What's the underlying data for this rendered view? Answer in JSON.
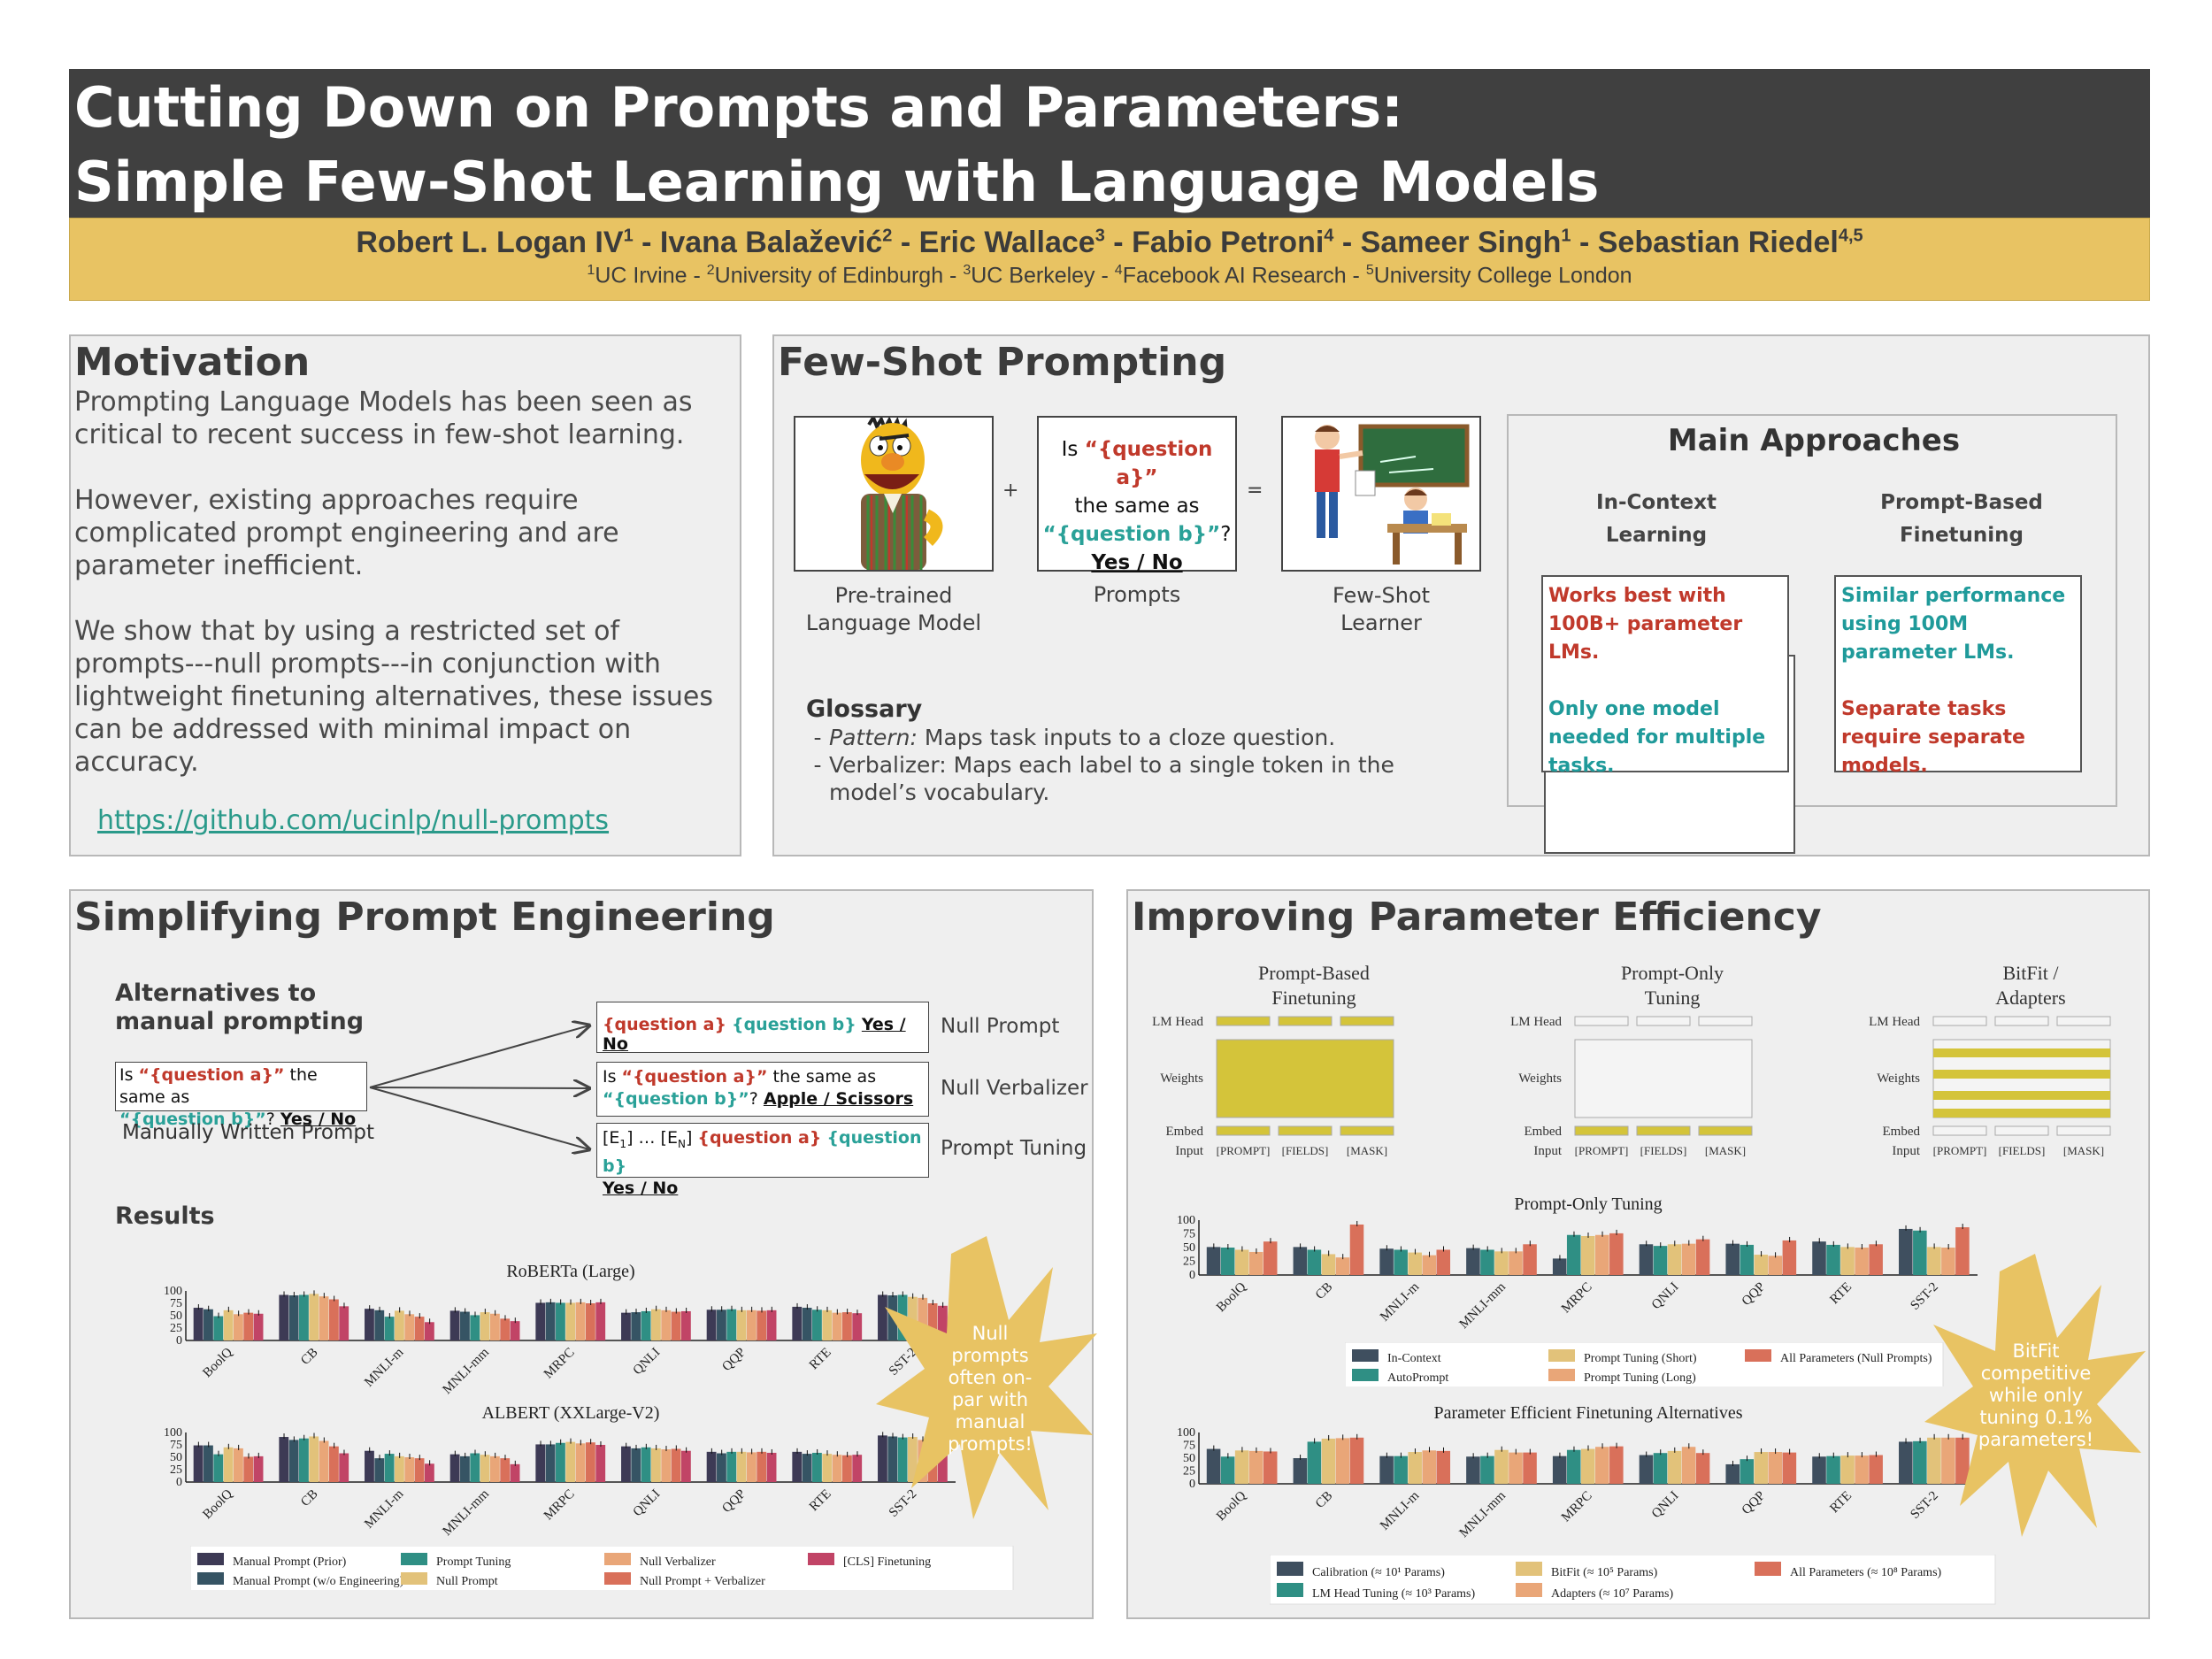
{
  "header": {
    "title_line1": "Cutting Down on Prompts and Parameters:",
    "title_line2": "Simple Few-Shot Learning with Language Models",
    "authors": [
      {
        "name": "Robert L. Logan IV",
        "sup": "1"
      },
      {
        "name": "Ivana Balažević",
        "sup": "2"
      },
      {
        "name": "Eric Wallace",
        "sup": "3"
      },
      {
        "name": "Fabio Petroni",
        "sup": "4"
      },
      {
        "name": "Sameer Singh",
        "sup": "1"
      },
      {
        "name": "Sebastian Riedel",
        "sup": "4,5"
      }
    ],
    "affiliations": [
      {
        "sup": "1",
        "name": "UC Irvine"
      },
      {
        "sup": "2",
        "name": "University of Edinburgh"
      },
      {
        "sup": "3",
        "name": "UC Berkeley"
      },
      {
        "sup": "4",
        "name": "Facebook AI Research"
      },
      {
        "sup": "5",
        "name": "University College London"
      }
    ],
    "separator": " - "
  },
  "motivation": {
    "heading": "Motivation",
    "para1": "Prompting Language Models has been seen as critical to recent success in few-shot learning.",
    "para2": "However, existing approaches require complicated prompt engineering and are parameter inefficient.",
    "para3": "We show that by using a restricted set of prompts---null prompts---in conjunction with lightweight finetuning alternatives, these issues can be addressed with minimal impact on accuracy.",
    "link": "https://github.com/ucinlp/null-prompts"
  },
  "few_shot": {
    "heading": "Few-Shot Prompting",
    "plus": "+",
    "equals": "=",
    "prompt_is": "Is ",
    "prompt_qa": "“{question a}”",
    "prompt_same": "the same as",
    "prompt_qb": "“{question b}”",
    "prompt_q": "?",
    "prompt_yesno": "Yes / No",
    "cap_lm": "Pre-trained Language Model",
    "cap_prompts": "Prompts",
    "cap_learner": "Few-Shot Learner",
    "glossary_title": "Glossary",
    "gloss_dash": "-",
    "gloss_pattern_term": "Pattern:",
    "gloss_pattern_def": " Maps task inputs to a cloze question.",
    "gloss_verbalizer": "Verbalizer: Maps each label to a single token in the model’s  vocabulary.",
    "main_title": "Main Approaches",
    "icl_title": "In-Context Learning",
    "pbf_title": "Prompt-Based Finetuning",
    "icl_a": "Works best with 100B+ parameter LMs.",
    "icl_b": "Only one model needed for multiple tasks.",
    "pbf_a": "Similar performance using 100M parameter LMs.",
    "pbf_b": "Separate tasks require separate models."
  },
  "simplifying": {
    "heading": "Simplifying Prompt Engineering",
    "alt_title": "Alternatives  to manual prompting",
    "manual_is": "Is ",
    "manual_qa": "“{question a}”",
    "manual_same": "  the same as",
    "manual_qb": "“{question b}”",
    "manual_q": "? ",
    "manual_yesno": "Yes / No",
    "manual_caption": "Manually Written Prompt",
    "null_qa": "{question a}",
    "null_qb": "{question b}",
    "null_yesno": "Yes / No",
    "null_label": "Null Prompt",
    "nv_is": "Is ",
    "nv_qa": "“{question a}”",
    "nv_same": "  the same as",
    "nv_qb": "“{question b}”",
    "nv_q": "? ",
    "nv_ans": "Apple / Scissors",
    "nv_label": "Null Verbalizer",
    "pt_e1": "[E",
    "pt_e1_sub": "1",
    "pt_dots": "] … [E",
    "pt_en_sub": "N",
    "pt_close": "] ",
    "pt_qa": "{question a}",
    "pt_qb": "{question b}",
    "pt_yesno": "Yes / No",
    "pt_label": "Prompt Tuning",
    "results": "Results",
    "callout": "Null prompts often on-par with manual prompts!"
  },
  "improving": {
    "heading": "Improving Parameter Efficiency",
    "diagrams": [
      {
        "title": "Prompt-Based Finetuning",
        "lm_head": true,
        "weights": "full",
        "embed": true
      },
      {
        "title": "Prompt-Only Tuning",
        "lm_head": false,
        "weights": "none",
        "embed": true
      },
      {
        "title": "BitFit / Adapters",
        "lm_head": false,
        "weights": "stripes",
        "embed": false
      }
    ],
    "row_labels": {
      "lm": "LM Head",
      "weights": "Weights",
      "embed": "Embed",
      "input": "Input"
    },
    "input_tokens": [
      "[PROMPT]",
      "[FIELDS]",
      "[MASK]"
    ],
    "trained_color": "#d4c43a",
    "callout": "BitFit competitive while only tuning 0.1% parameters!"
  },
  "chart_data": [
    {
      "type": "bar",
      "title": "RoBERTa (Large)",
      "categories": [
        "BoolQ",
        "CB",
        "MNLI-m",
        "MNLI-mm",
        "MRPC",
        "QNLI",
        "QQP",
        "RTE",
        "SST-2"
      ],
      "yticks": [
        0,
        25,
        50,
        75,
        100
      ],
      "ylim": [
        0,
        100
      ],
      "series": [
        {
          "name": "Manual Prompt (Prior)",
          "color": "#3d3a55",
          "values": [
            66,
            92,
            64,
            60,
            76,
            56,
            62,
            68,
            92
          ]
        },
        {
          "name": "Manual Prompt (w/o Engineering)",
          "color": "#365464",
          "values": [
            63,
            91,
            61,
            58,
            77,
            57,
            62,
            66,
            91
          ]
        },
        {
          "name": "Prompt Tuning",
          "color": "#2f8f84",
          "values": [
            49,
            92,
            48,
            51,
            76,
            59,
            63,
            62,
            92
          ]
        },
        {
          "name": "Null Prompt",
          "color": "#e2c27a",
          "values": [
            61,
            94,
            60,
            57,
            76,
            63,
            61,
            61,
            88
          ]
        },
        {
          "name": "Null Verbalizer",
          "color": "#e9a678",
          "values": [
            53,
            89,
            53,
            54,
            77,
            61,
            61,
            56,
            86
          ]
        },
        {
          "name": "Null Prompt + Verbalizer",
          "color": "#d9705a",
          "values": [
            56,
            83,
            48,
            44,
            75,
            58,
            60,
            57,
            75
          ]
        },
        {
          "name": "[CLS] Finetuning",
          "color": "#c14466",
          "values": [
            54,
            69,
            37,
            39,
            77,
            59,
            61,
            55,
            70
          ]
        }
      ]
    },
    {
      "type": "bar",
      "title": "ALBERT (XXLarge-V2)",
      "categories": [
        "BoolQ",
        "CB",
        "MNLI-m",
        "MNLI-mm",
        "MRPC",
        "QNLI",
        "QQP",
        "RTE",
        "SST-2"
      ],
      "yticks": [
        0,
        25,
        50,
        75,
        100
      ],
      "ylim": [
        0,
        100
      ],
      "series": [
        {
          "name": "Manual Prompt (Prior)",
          "color": "#3d3a55",
          "values": [
            74,
            91,
            63,
            56,
            76,
            72,
            61,
            61,
            94
          ]
        },
        {
          "name": "Manual Prompt (w/o Engineering)",
          "color": "#365464",
          "values": [
            74,
            85,
            48,
            52,
            76,
            68,
            58,
            57,
            92
          ]
        },
        {
          "name": "Prompt Tuning",
          "color": "#2f8f84",
          "values": [
            56,
            88,
            57,
            58,
            79,
            70,
            61,
            59,
            90
          ]
        },
        {
          "name": "Null Prompt",
          "color": "#e2c27a",
          "values": [
            70,
            92,
            52,
            55,
            81,
            68,
            61,
            57,
            91
          ]
        },
        {
          "name": "Null Verbalizer",
          "color": "#e9a678",
          "values": [
            68,
            83,
            50,
            52,
            78,
            66,
            60,
            55,
            85
          ]
        },
        {
          "name": "Null Prompt + Verbalizer",
          "color": "#d9705a",
          "values": [
            51,
            72,
            48,
            48,
            80,
            67,
            61,
            54,
            80
          ]
        },
        {
          "name": "[CLS] Finetuning",
          "color": "#c14466",
          "values": [
            52,
            58,
            37,
            36,
            75,
            63,
            59,
            55,
            64
          ]
        }
      ]
    },
    {
      "type": "bar",
      "title": "Prompt-Only Tuning",
      "categories": [
        "BoolQ",
        "CB",
        "MNLI-m",
        "MNLI-mm",
        "MRPC",
        "QNLI",
        "QQP",
        "RTE",
        "SST-2"
      ],
      "yticks": [
        0,
        25,
        50,
        75,
        100
      ],
      "ylim": [
        0,
        100
      ],
      "series": [
        {
          "name": "In-Context",
          "color": "#3f4f5f",
          "values": [
            51,
            51,
            48,
            49,
            30,
            56,
            57,
            61,
            84
          ]
        },
        {
          "name": "AutoPrompt",
          "color": "#2f8f84",
          "values": [
            50,
            46,
            46,
            46,
            73,
            53,
            55,
            55,
            81
          ]
        },
        {
          "name": "Prompt Tuning (Short)",
          "color": "#e2c27a",
          "values": [
            46,
            38,
            41,
            43,
            71,
            56,
            37,
            51,
            51
          ]
        },
        {
          "name": "Prompt Tuning (Long)",
          "color": "#e9a678",
          "values": [
            42,
            32,
            36,
            43,
            73,
            57,
            35,
            50,
            50
          ]
        },
        {
          "name": "All Parameters (Null Prompts)",
          "color": "#d9705a",
          "values": [
            61,
            92,
            46,
            56,
            76,
            65,
            63,
            56,
            87
          ]
        }
      ]
    },
    {
      "type": "bar",
      "title": "Parameter Efficient Finetuning Alternatives",
      "categories": [
        "BoolQ",
        "CB",
        "MNLI-m",
        "MNLI-mm",
        "MRPC",
        "QNLI",
        "QQP",
        "RTE",
        "SST-2"
      ],
      "yticks": [
        0,
        25,
        50,
        75,
        100
      ],
      "ylim": [
        0,
        100
      ],
      "series": [
        {
          "name": "Calibration (≈ 10¹ Params)",
          "color": "#3f4f5f",
          "values": [
            68,
            50,
            54,
            53,
            54,
            56,
            38,
            53,
            82
          ]
        },
        {
          "name": "LM Head Tuning (≈ 10³ Params)",
          "color": "#2f8f84",
          "values": [
            53,
            82,
            54,
            54,
            66,
            60,
            48,
            54,
            83
          ]
        },
        {
          "name": "BitFit (≈ 10⁵ Params)",
          "color": "#e2c27a",
          "values": [
            65,
            88,
            62,
            66,
            68,
            64,
            62,
            55,
            90
          ]
        },
        {
          "name": "Adapters (≈ 10⁷ Params)",
          "color": "#e9a678",
          "values": [
            64,
            89,
            65,
            61,
            72,
            72,
            62,
            55,
            90
          ]
        },
        {
          "name": "All Parameters (≈ 10⁸ Params)",
          "color": "#d9705a",
          "values": [
            63,
            90,
            64,
            61,
            73,
            60,
            61,
            56,
            90
          ]
        }
      ]
    }
  ]
}
